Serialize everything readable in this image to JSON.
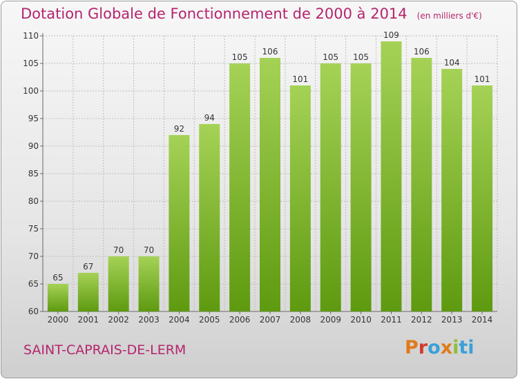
{
  "header": {
    "title": "Dotation Globale de Fonctionnement de 2000 à 2014",
    "unit": "(en milliers d'€)"
  },
  "footer": {
    "commune": "SAINT-CAPRAIS-DE-LERM",
    "logo": [
      "P",
      "r",
      "o",
      "x",
      "i",
      "ti"
    ]
  },
  "colors": {
    "bar_top": "#a5d256",
    "bar_bottom": "#5e9a10",
    "title": "#b5246e",
    "grid": "#bdbdbd"
  },
  "chart_data": {
    "type": "bar",
    "title": "Dotation Globale de Fonctionnement de 2000 à 2014",
    "subtitle": "(en milliers d'€)",
    "xlabel": "",
    "ylabel": "",
    "categories": [
      "2000",
      "2001",
      "2002",
      "2003",
      "2004",
      "2005",
      "2006",
      "2007",
      "2008",
      "2009",
      "2010",
      "2011",
      "2012",
      "2013",
      "2014"
    ],
    "values": [
      65,
      67,
      70,
      70,
      92,
      94,
      105,
      106,
      101,
      105,
      105,
      109,
      106,
      104,
      101
    ],
    "ylim": [
      60,
      110
    ],
    "yticks": [
      60,
      65,
      70,
      75,
      80,
      85,
      90,
      95,
      100,
      105,
      110
    ],
    "grid": true,
    "data_labels": true
  }
}
